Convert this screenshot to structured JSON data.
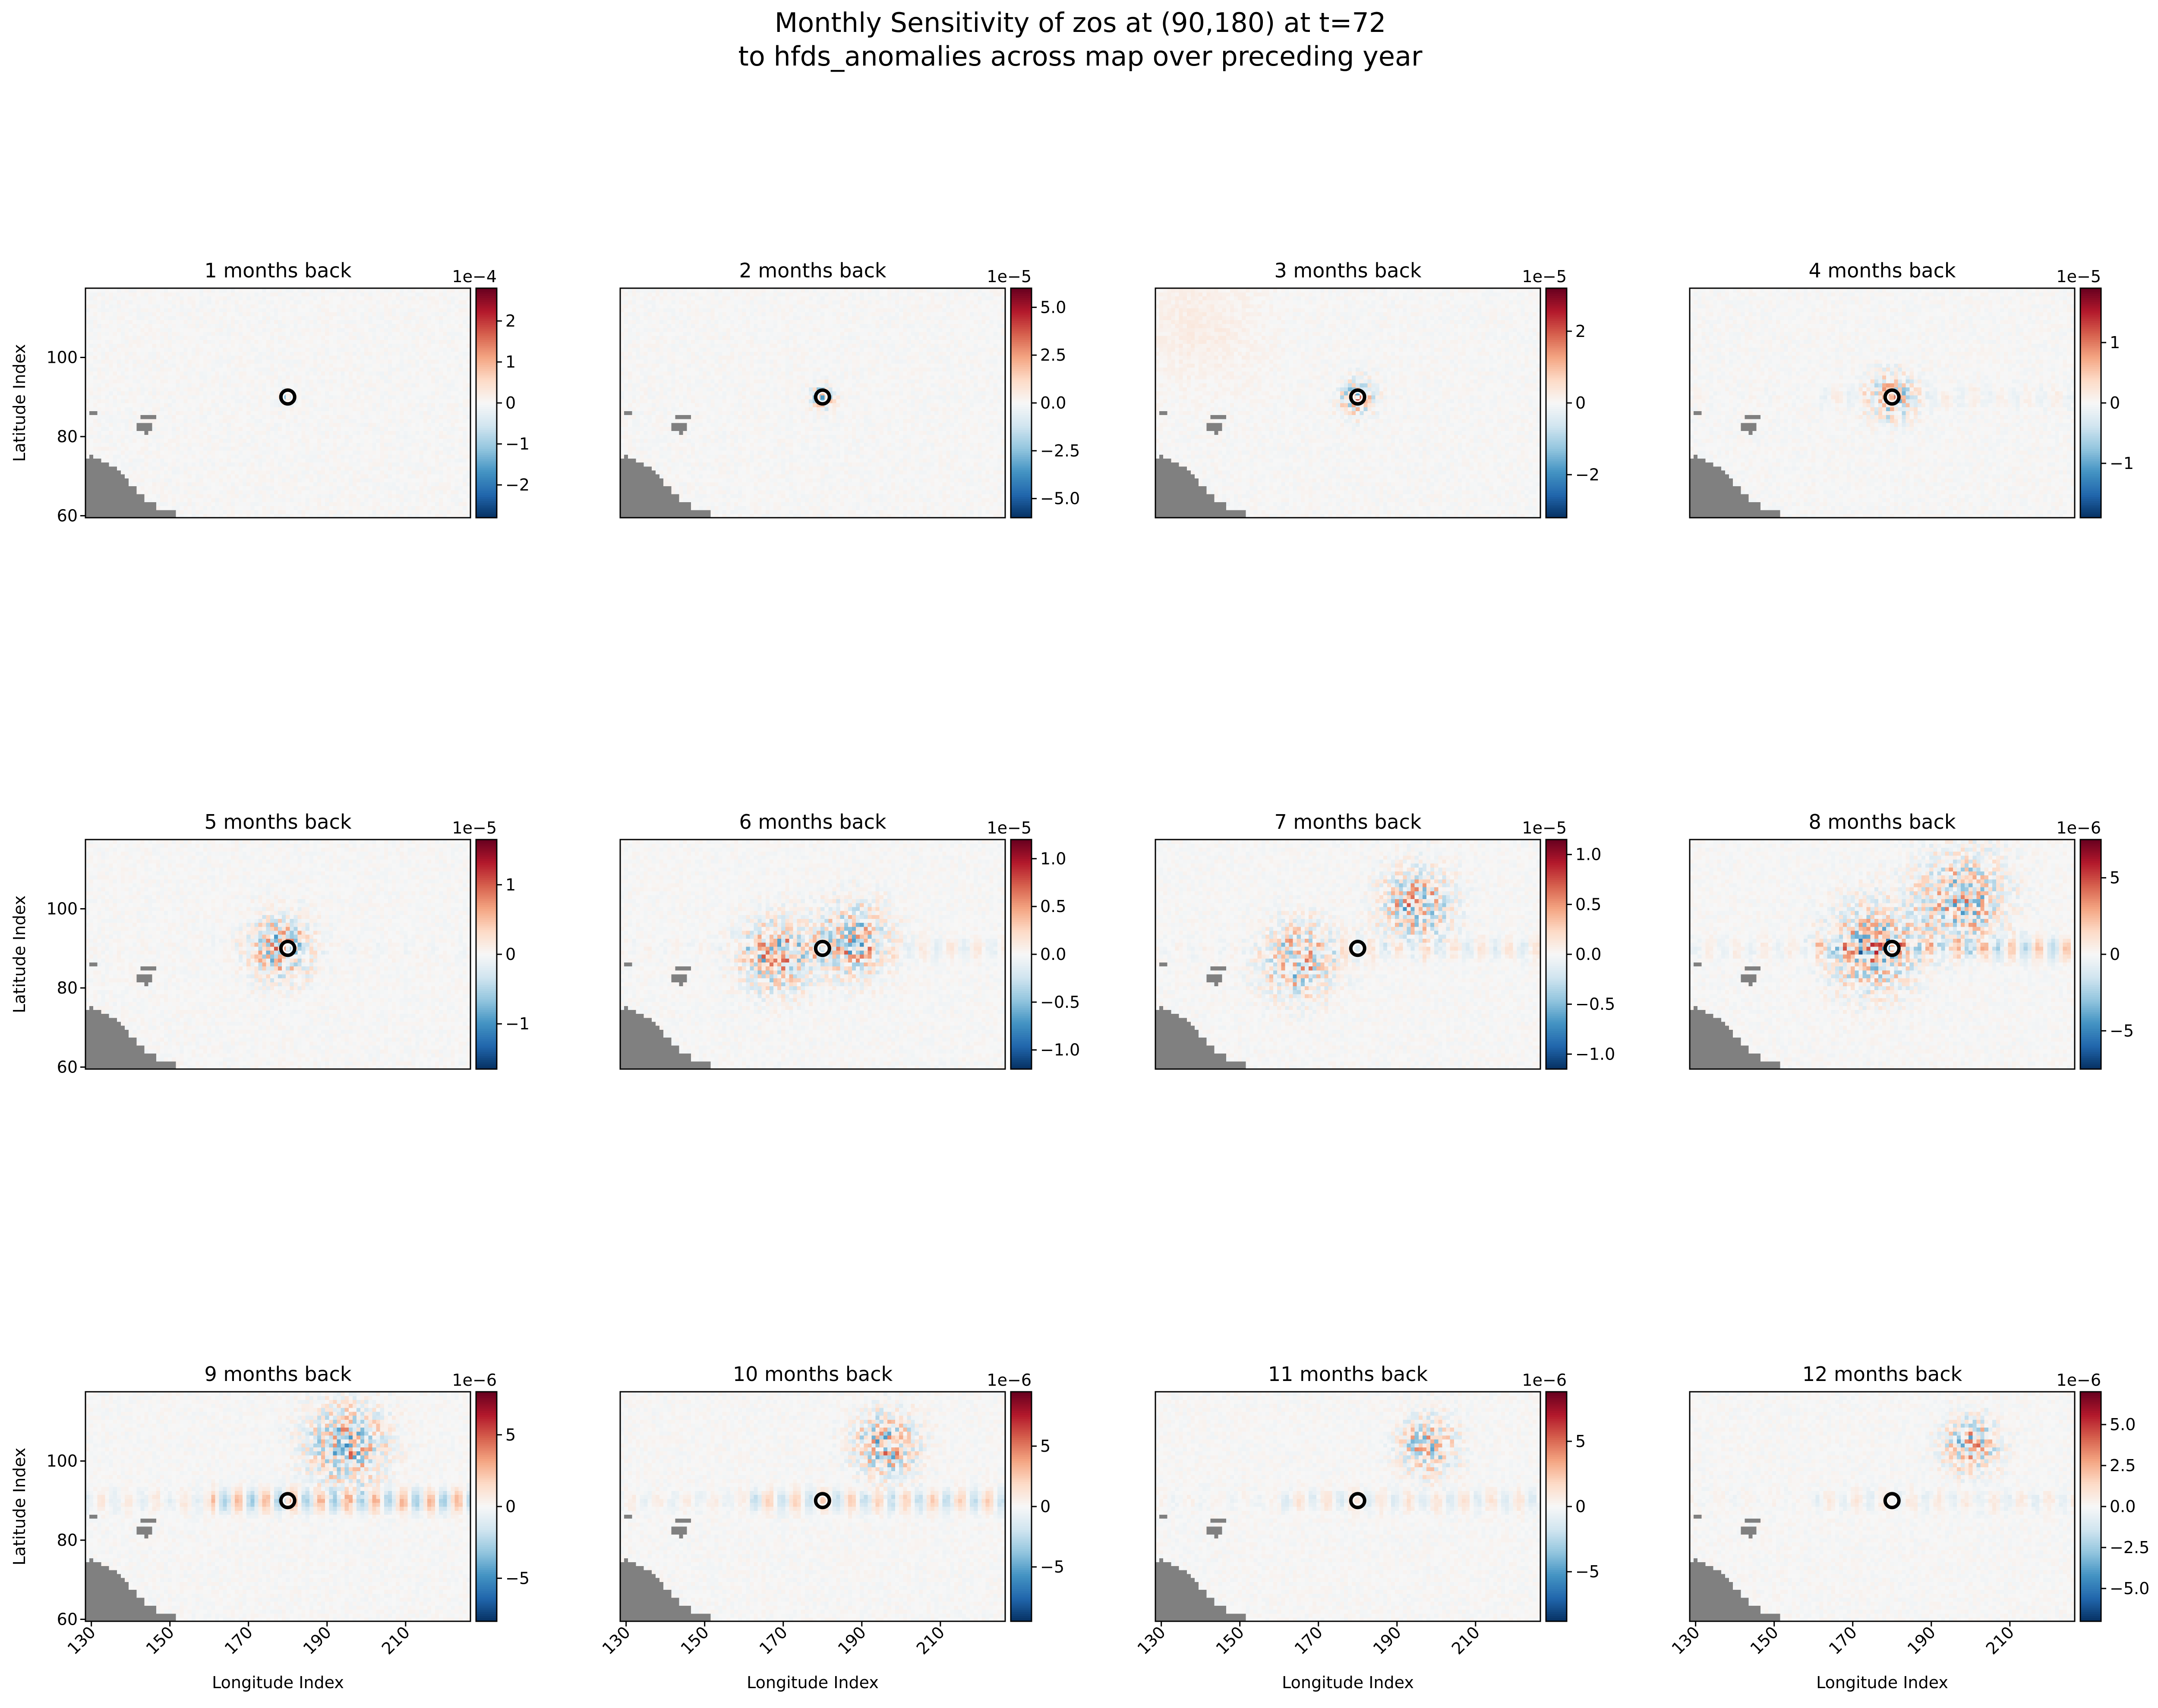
{
  "figure": {
    "title_line1": "Monthly Sensitivity of zos at (90,180) at t=72",
    "title_line2": "to hfds_anomalies across map over preceding year"
  },
  "chart_data": [
    {
      "type": "heatmap",
      "title": "1 months back",
      "xlabel": "",
      "ylabel": "Latitude Index",
      "xlim": [
        129,
        227
      ],
      "ylim": [
        60,
        118
      ],
      "yticks": [
        60,
        80,
        100
      ],
      "xticks": [],
      "colorbar": {
        "scale_label": "1e−4",
        "range": [
          -2.8,
          2.8
        ],
        "ticks": [
          {
            "v": -2,
            "t": "−2"
          },
          {
            "v": -1,
            "t": "−1"
          },
          {
            "v": 0,
            "t": "0"
          },
          {
            "v": 1,
            "t": "1"
          },
          {
            "v": 2,
            "t": "2"
          }
        ]
      },
      "pattern": {
        "hot": [
          [
            180,
            90
          ]
        ],
        "spread": 1.6,
        "band": 0,
        "sw": 0
      },
      "marker": {
        "lon": 180,
        "lat": 90
      }
    },
    {
      "type": "heatmap",
      "title": "2 months back",
      "xlabel": "",
      "ylabel": "",
      "xlim": [
        129,
        227
      ],
      "ylim": [
        60,
        118
      ],
      "yticks": [],
      "xticks": [],
      "colorbar": {
        "scale_label": "1e−5",
        "range": [
          -6,
          6
        ],
        "ticks": [
          {
            "v": -5,
            "t": "−5.0"
          },
          {
            "v": -2.5,
            "t": "−2.5"
          },
          {
            "v": 0,
            "t": "0.0"
          },
          {
            "v": 2.5,
            "t": "2.5"
          },
          {
            "v": 5,
            "t": "5.0"
          }
        ]
      },
      "pattern": {
        "hot": [
          [
            180,
            90
          ]
        ],
        "spread": 3,
        "band": 0,
        "sw": 0
      },
      "marker": {
        "lon": 180,
        "lat": 90
      }
    },
    {
      "type": "heatmap",
      "title": "3 months back",
      "xlabel": "",
      "ylabel": "",
      "xlim": [
        129,
        227
      ],
      "ylim": [
        60,
        118
      ],
      "yticks": [],
      "xticks": [],
      "colorbar": {
        "scale_label": "1e−5",
        "range": [
          -3.2,
          3.2
        ],
        "ticks": [
          {
            "v": -2,
            "t": "−2"
          },
          {
            "v": 0,
            "t": "0"
          },
          {
            "v": 2,
            "t": "2"
          }
        ]
      },
      "pattern": {
        "hot": [
          [
            180,
            90
          ]
        ],
        "spread": 4.5,
        "band": 0,
        "sw": 0.3
      },
      "marker": {
        "lon": 180,
        "lat": 90
      }
    },
    {
      "type": "heatmap",
      "title": "4 months back",
      "xlabel": "",
      "ylabel": "",
      "xlim": [
        129,
        227
      ],
      "ylim": [
        60,
        118
      ],
      "yticks": [],
      "xticks": [],
      "colorbar": {
        "scale_label": "1e−5",
        "range": [
          -1.9,
          1.9
        ],
        "ticks": [
          {
            "v": -1,
            "t": "−1"
          },
          {
            "v": 0,
            "t": "0"
          },
          {
            "v": 1,
            "t": "1"
          }
        ]
      },
      "pattern": {
        "hot": [
          [
            180,
            90
          ]
        ],
        "spread": 6,
        "band": 0.2,
        "sw": 0
      },
      "marker": {
        "lon": 180,
        "lat": 90
      }
    },
    {
      "type": "heatmap",
      "title": "5 months back",
      "xlabel": "",
      "ylabel": "Latitude Index",
      "xlim": [
        129,
        227
      ],
      "ylim": [
        60,
        118
      ],
      "yticks": [
        60,
        80,
        100
      ],
      "xticks": [],
      "colorbar": {
        "scale_label": "1e−5",
        "range": [
          -1.65,
          1.65
        ],
        "ticks": [
          {
            "v": -1,
            "t": "−1"
          },
          {
            "v": 0,
            "t": "0"
          },
          {
            "v": 1,
            "t": "1"
          }
        ]
      },
      "pattern": {
        "hot": [
          [
            178,
            90
          ]
        ],
        "spread": 8,
        "band": 0.1,
        "sw": 0
      },
      "marker": {
        "lon": 180,
        "lat": 90
      }
    },
    {
      "type": "heatmap",
      "title": "6 months back",
      "xlabel": "",
      "ylabel": "",
      "xlim": [
        129,
        227
      ],
      "ylim": [
        60,
        118
      ],
      "yticks": [],
      "xticks": [],
      "colorbar": {
        "scale_label": "1e−5",
        "range": [
          -1.2,
          1.2
        ],
        "ticks": [
          {
            "v": -1,
            "t": "−1.0"
          },
          {
            "v": -0.5,
            "t": "−0.5"
          },
          {
            "v": 0,
            "t": "0.0"
          },
          {
            "v": 0.5,
            "t": "0.5"
          },
          {
            "v": 1,
            "t": "1.0"
          }
        ]
      },
      "pattern": {
        "hot": [
          [
            168,
            88
          ],
          [
            188,
            92
          ]
        ],
        "spread": 9,
        "band": 0.3,
        "sw": 0
      },
      "marker": {
        "lon": 180,
        "lat": 90
      }
    },
    {
      "type": "heatmap",
      "title": "7 months back",
      "xlabel": "",
      "ylabel": "",
      "xlim": [
        129,
        227
      ],
      "ylim": [
        60,
        118
      ],
      "yticks": [],
      "xticks": [],
      "colorbar": {
        "scale_label": "1e−5",
        "range": [
          -1.15,
          1.15
        ],
        "ticks": [
          {
            "v": -1,
            "t": "−1.0"
          },
          {
            "v": -0.5,
            "t": "−0.5"
          },
          {
            "v": 0,
            "t": "0.0"
          },
          {
            "v": 0.5,
            "t": "0.5"
          },
          {
            "v": 1,
            "t": "1.0"
          }
        ]
      },
      "pattern": {
        "hot": [
          [
            165,
            87
          ],
          [
            195,
            101
          ]
        ],
        "spread": 9,
        "band": 0.4,
        "sw": 0
      },
      "marker": {
        "lon": 180,
        "lat": 90
      }
    },
    {
      "type": "heatmap",
      "title": "8 months back",
      "xlabel": "",
      "ylabel": "",
      "xlim": [
        129,
        227
      ],
      "ylim": [
        60,
        118
      ],
      "yticks": [],
      "xticks": [],
      "colorbar": {
        "scale_label": "1e−6",
        "range": [
          -7.5,
          7.5
        ],
        "ticks": [
          {
            "v": -5,
            "t": "−5"
          },
          {
            "v": 0,
            "t": "0"
          },
          {
            "v": 5,
            "t": "5"
          }
        ]
      },
      "pattern": {
        "hot": [
          [
            175,
            90
          ],
          [
            198,
            103
          ]
        ],
        "spread": 11,
        "band": 0.8,
        "sw": 0
      },
      "marker": {
        "lon": 180,
        "lat": 90
      }
    },
    {
      "type": "heatmap",
      "title": "9 months back",
      "xlabel": "Longitude Index",
      "ylabel": "Latitude Index",
      "xlim": [
        129,
        227
      ],
      "ylim": [
        60,
        118
      ],
      "yticks": [
        60,
        80,
        100
      ],
      "xticks": [
        130,
        150,
        170,
        190,
        210
      ],
      "colorbar": {
        "scale_label": "1e−6",
        "range": [
          -8,
          8
        ],
        "ticks": [
          {
            "v": -5,
            "t": "−5"
          },
          {
            "v": 0,
            "t": "0"
          },
          {
            "v": 5,
            "t": "5"
          }
        ]
      },
      "pattern": {
        "hot": [
          [
            195,
            104
          ]
        ],
        "spread": 10,
        "band": 1,
        "sw": 0
      },
      "marker": {
        "lon": 180,
        "lat": 90
      }
    },
    {
      "type": "heatmap",
      "title": "10 months back",
      "xlabel": "Longitude Index",
      "ylabel": "",
      "xlim": [
        129,
        227
      ],
      "ylim": [
        60,
        118
      ],
      "yticks": [],
      "xticks": [
        130,
        150,
        170,
        190,
        210
      ],
      "colorbar": {
        "scale_label": "1e−6",
        "range": [
          -9.5,
          9.5
        ],
        "ticks": [
          {
            "v": -5,
            "t": "−5"
          },
          {
            "v": 0,
            "t": "0"
          },
          {
            "v": 5,
            "t": "5"
          }
        ]
      },
      "pattern": {
        "hot": [
          [
            196,
            104
          ]
        ],
        "spread": 8,
        "band": 0.7,
        "sw": 0
      },
      "marker": {
        "lon": 180,
        "lat": 90
      }
    },
    {
      "type": "heatmap",
      "title": "11 months back",
      "xlabel": "Longitude Index",
      "ylabel": "",
      "xlim": [
        129,
        227
      ],
      "ylim": [
        60,
        118
      ],
      "yticks": [],
      "xticks": [
        130,
        150,
        170,
        190,
        210
      ],
      "colorbar": {
        "scale_label": "1e−6",
        "range": [
          -8.8,
          8.8
        ],
        "ticks": [
          {
            "v": -5,
            "t": "−5"
          },
          {
            "v": 0,
            "t": "0"
          },
          {
            "v": 5,
            "t": "5"
          }
        ]
      },
      "pattern": {
        "hot": [
          [
            198,
            104
          ]
        ],
        "spread": 7,
        "band": 0.4,
        "sw": 0
      },
      "marker": {
        "lon": 180,
        "lat": 90
      }
    },
    {
      "type": "heatmap",
      "title": "12 months back",
      "xlabel": "Longitude Index",
      "ylabel": "",
      "xlim": [
        129,
        227
      ],
      "ylim": [
        60,
        118
      ],
      "yticks": [],
      "xticks": [
        130,
        150,
        170,
        190,
        210
      ],
      "colorbar": {
        "scale_label": "1e−6",
        "range": [
          -7,
          7
        ],
        "ticks": [
          {
            "v": -5,
            "t": "−5.0"
          },
          {
            "v": -2.5,
            "t": "−2.5"
          },
          {
            "v": 0,
            "t": "0.0"
          },
          {
            "v": 2.5,
            "t": "2.5"
          },
          {
            "v": 5,
            "t": "5.0"
          }
        ]
      },
      "pattern": {
        "hot": [
          [
            200,
            104
          ]
        ],
        "spread": 7,
        "band": 0.3,
        "sw": 0
      },
      "marker": {
        "lon": 180,
        "lat": 90
      }
    }
  ]
}
